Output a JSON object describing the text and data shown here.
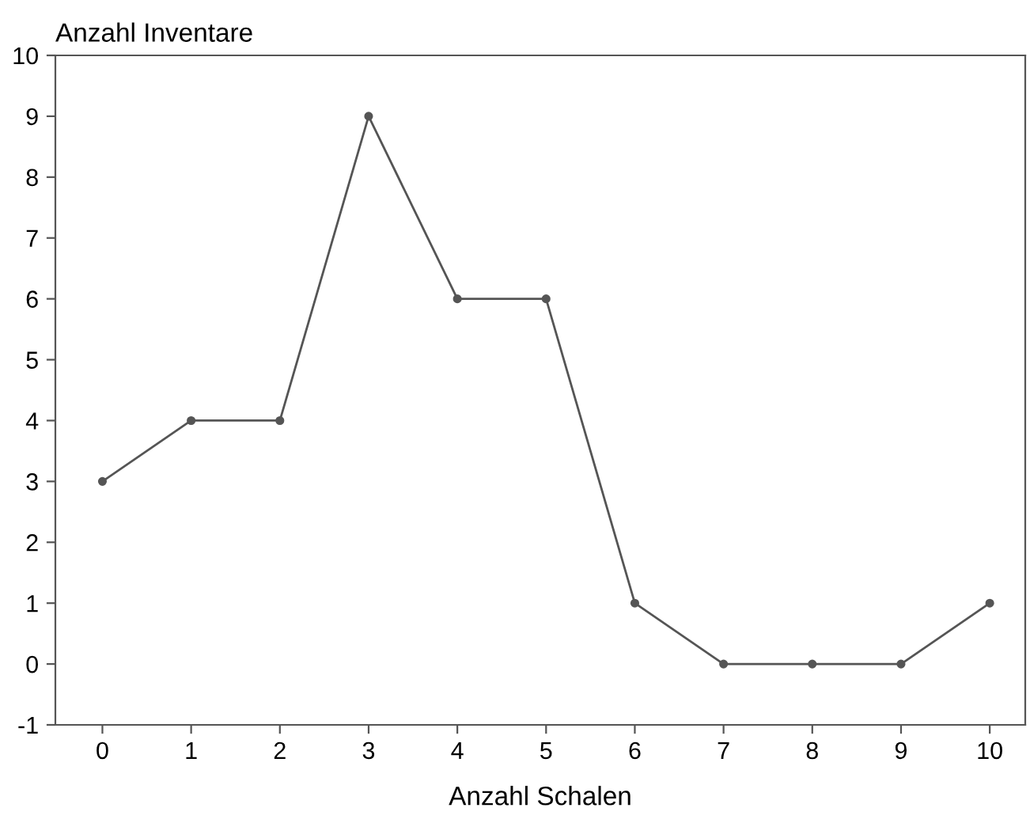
{
  "chart_data": {
    "type": "line",
    "xlabel": "Anzahl Schalen",
    "ylabel": "Anzahl Inventare",
    "x": [
      0,
      1,
      2,
      3,
      4,
      5,
      6,
      7,
      8,
      9,
      10
    ],
    "series": [
      {
        "color": "#555555",
        "values": [
          3,
          4,
          4,
          9,
          6,
          6,
          1,
          0,
          0,
          0,
          1
        ]
      }
    ],
    "xlim": [
      -0.53,
      10.4
    ],
    "xticks": [
      0,
      1,
      2,
      3,
      4,
      5,
      6,
      7,
      8,
      9,
      10
    ],
    "ylim": [
      -1,
      10
    ],
    "yticks": [
      -1,
      0,
      1,
      2,
      3,
      4,
      5,
      6,
      7,
      8,
      9,
      10
    ],
    "marker": "circle",
    "line_style": "solid"
  }
}
